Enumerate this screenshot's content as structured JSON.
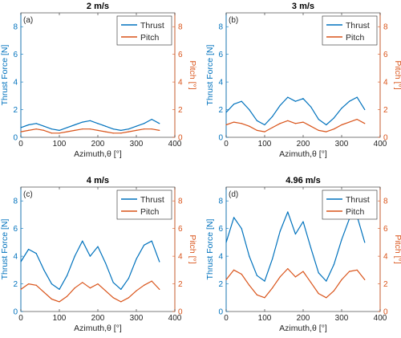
{
  "chart_data": [
    {
      "type": "line",
      "panel_label": "(a)",
      "title": "2 m/s",
      "xlabel": "Azimuth,θ [°]",
      "ylabel_left": "Thrust Force [N]",
      "ylabel_right": "Pitch [°]",
      "xlim": [
        0,
        400
      ],
      "ylim_left": [
        0,
        9
      ],
      "ylim_right": [
        0,
        9
      ],
      "xticks": [
        "0",
        "100",
        "200",
        "300",
        "400"
      ],
      "yticks_left": [
        "0",
        "2",
        "4",
        "6",
        "8"
      ],
      "yticks_right": [
        "0",
        "2",
        "4",
        "6",
        "8"
      ],
      "legend": [
        "Thrust",
        "Pitch"
      ],
      "legend_position": "top-right",
      "series": [
        {
          "name": "Thrust",
          "axis": "left",
          "color": "#0072BD",
          "x": [
            0,
            20,
            40,
            60,
            80,
            100,
            120,
            140,
            160,
            180,
            200,
            220,
            240,
            260,
            280,
            300,
            320,
            340,
            360
          ],
          "values": [
            0.7,
            0.9,
            1.0,
            0.8,
            0.6,
            0.5,
            0.7,
            0.9,
            1.1,
            1.2,
            1.0,
            0.8,
            0.6,
            0.5,
            0.6,
            0.8,
            1.0,
            1.3,
            1.0
          ]
        },
        {
          "name": "Pitch",
          "axis": "right",
          "color": "#D95319",
          "x": [
            0,
            20,
            40,
            60,
            80,
            100,
            120,
            140,
            160,
            180,
            200,
            220,
            240,
            260,
            280,
            300,
            320,
            340,
            360
          ],
          "values": [
            0.4,
            0.5,
            0.6,
            0.5,
            0.3,
            0.3,
            0.4,
            0.5,
            0.6,
            0.6,
            0.5,
            0.4,
            0.3,
            0.3,
            0.4,
            0.5,
            0.6,
            0.6,
            0.5
          ]
        }
      ]
    },
    {
      "type": "line",
      "panel_label": "(b)",
      "title": "3 m/s",
      "xlabel": "Azimuth,θ [°]",
      "ylabel_left": "Thrust Force [N]",
      "ylabel_right": "Pitch [°]",
      "xlim": [
        0,
        400
      ],
      "ylim_left": [
        0,
        9
      ],
      "ylim_right": [
        0,
        9
      ],
      "xticks": [
        "0",
        "100",
        "200",
        "300",
        "400"
      ],
      "yticks_left": [
        "0",
        "2",
        "4",
        "6",
        "8"
      ],
      "yticks_right": [
        "0",
        "2",
        "4",
        "6",
        "8"
      ],
      "legend": [
        "Thrust",
        "Pitch"
      ],
      "legend_position": "top-right",
      "series": [
        {
          "name": "Thrust",
          "axis": "left",
          "color": "#0072BD",
          "x": [
            0,
            20,
            40,
            60,
            80,
            100,
            120,
            140,
            160,
            180,
            200,
            220,
            240,
            260,
            280,
            300,
            320,
            340,
            360
          ],
          "values": [
            1.8,
            2.4,
            2.6,
            2.0,
            1.2,
            0.9,
            1.5,
            2.3,
            2.9,
            2.6,
            2.8,
            2.2,
            1.3,
            0.9,
            1.4,
            2.1,
            2.6,
            2.9,
            2.0
          ]
        },
        {
          "name": "Pitch",
          "axis": "right",
          "color": "#D95319",
          "x": [
            0,
            20,
            40,
            60,
            80,
            100,
            120,
            140,
            160,
            180,
            200,
            220,
            240,
            260,
            280,
            300,
            320,
            340,
            360
          ],
          "values": [
            0.9,
            1.1,
            1.0,
            0.8,
            0.5,
            0.4,
            0.7,
            1.0,
            1.2,
            1.0,
            1.1,
            0.8,
            0.5,
            0.4,
            0.6,
            0.9,
            1.1,
            1.3,
            1.0
          ]
        }
      ]
    },
    {
      "type": "line",
      "panel_label": "(c)",
      "title": "4 m/s",
      "xlabel": "Azimuth,θ [°]",
      "ylabel_left": "Thrust Force [N]",
      "ylabel_right": "Pitch [°]",
      "xlim": [
        0,
        400
      ],
      "ylim_left": [
        0,
        9
      ],
      "ylim_right": [
        0,
        9
      ],
      "xticks": [
        "0",
        "100",
        "200",
        "300",
        "400"
      ],
      "yticks_left": [
        "0",
        "2",
        "4",
        "6",
        "8"
      ],
      "yticks_right": [
        "0",
        "2",
        "4",
        "6",
        "8"
      ],
      "legend": [
        "Thrust",
        "Pitch"
      ],
      "legend_position": "top-right",
      "series": [
        {
          "name": "Thrust",
          "axis": "left",
          "color": "#0072BD",
          "x": [
            0,
            20,
            40,
            60,
            80,
            100,
            120,
            140,
            160,
            180,
            200,
            220,
            240,
            260,
            280,
            300,
            320,
            340,
            360
          ],
          "values": [
            3.6,
            4.5,
            4.2,
            3.0,
            2.0,
            1.6,
            2.6,
            4.0,
            5.1,
            4.0,
            4.7,
            3.5,
            2.1,
            1.6,
            2.4,
            3.8,
            4.8,
            5.1,
            3.6
          ]
        },
        {
          "name": "Pitch",
          "axis": "right",
          "color": "#D95319",
          "x": [
            0,
            20,
            40,
            60,
            80,
            100,
            120,
            140,
            160,
            180,
            200,
            220,
            240,
            260,
            280,
            300,
            320,
            340,
            360
          ],
          "values": [
            1.6,
            2.0,
            1.9,
            1.4,
            0.9,
            0.7,
            1.1,
            1.7,
            2.1,
            1.7,
            2.0,
            1.5,
            1.0,
            0.7,
            1.0,
            1.5,
            1.9,
            2.2,
            1.6
          ]
        }
      ]
    },
    {
      "type": "line",
      "panel_label": "(d)",
      "title": "4.96 m/s",
      "xlabel": "Azimuth,θ [°]",
      "ylabel_left": "Thrust Force [N]",
      "ylabel_right": "Pitch [°]",
      "xlim": [
        0,
        400
      ],
      "ylim_left": [
        0,
        9
      ],
      "ylim_right": [
        0,
        9
      ],
      "xticks": [
        "0",
        "100",
        "200",
        "300",
        "400"
      ],
      "yticks_left": [
        "0",
        "2",
        "4",
        "6",
        "8"
      ],
      "yticks_right": [
        "0",
        "2",
        "4",
        "6",
        "8"
      ],
      "legend": [
        "Thrust",
        "Pitch"
      ],
      "legend_position": "top-right",
      "series": [
        {
          "name": "Thrust",
          "axis": "left",
          "color": "#0072BD",
          "x": [
            0,
            20,
            40,
            60,
            80,
            100,
            120,
            140,
            160,
            180,
            200,
            220,
            240,
            260,
            280,
            300,
            320,
            340,
            360
          ],
          "values": [
            5.0,
            6.8,
            6.0,
            4.0,
            2.6,
            2.2,
            3.8,
            5.8,
            7.2,
            5.6,
            6.5,
            4.6,
            2.8,
            2.2,
            3.4,
            5.2,
            6.7,
            6.9,
            5.0
          ]
        },
        {
          "name": "Pitch",
          "axis": "right",
          "color": "#D95319",
          "x": [
            0,
            20,
            40,
            60,
            80,
            100,
            120,
            140,
            160,
            180,
            200,
            220,
            240,
            260,
            280,
            300,
            320,
            340,
            360
          ],
          "values": [
            2.3,
            3.0,
            2.7,
            1.9,
            1.2,
            1.0,
            1.7,
            2.5,
            3.1,
            2.5,
            2.9,
            2.1,
            1.3,
            1.0,
            1.5,
            2.3,
            2.9,
            3.0,
            2.3
          ]
        }
      ]
    }
  ]
}
